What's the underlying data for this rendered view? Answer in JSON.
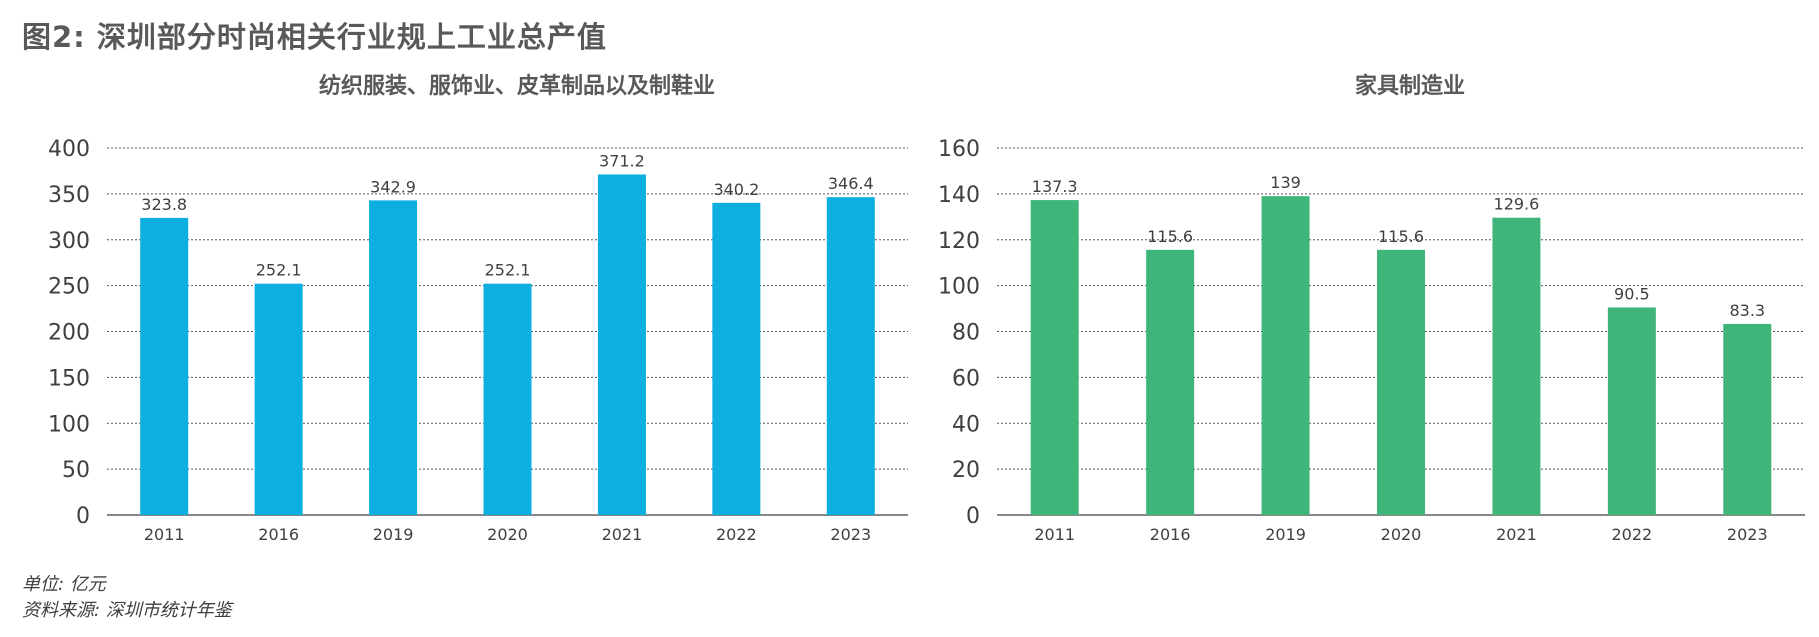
{
  "figure_title": "图2: 深圳部分时尚相关行业规上工业总产值",
  "footnotes": {
    "unit": "单位: 亿元",
    "source": "资料来源: 深圳市统计年鉴"
  },
  "chart_data": [
    {
      "type": "bar",
      "title": "纺织服装、服饰业、皮革制品以及制鞋业",
      "categories": [
        "2011",
        "2016",
        "2019",
        "2020",
        "2021",
        "2022",
        "2023"
      ],
      "values": [
        323.8,
        252.1,
        342.9,
        252.1,
        371.2,
        340.2,
        346.4
      ],
      "value_labels": [
        "323.8",
        "252.1",
        "342.9",
        "252.1",
        "371.2",
        "340.2",
        "346.4"
      ],
      "yticks": [
        "0",
        "50",
        "100",
        "150",
        "200",
        "250",
        "300",
        "350",
        "400"
      ],
      "ylim": [
        0,
        400
      ],
      "grid": true,
      "color": "#0daee0"
    },
    {
      "type": "bar",
      "title": "家具制造业",
      "categories": [
        "2011",
        "2016",
        "2019",
        "2020",
        "2021",
        "2022",
        "2023"
      ],
      "values": [
        137.3,
        115.6,
        139,
        115.6,
        129.6,
        90.5,
        83.3
      ],
      "value_labels": [
        "137.3",
        "115.6",
        "139",
        "115.6",
        "129.6",
        "90.5",
        "83.3"
      ],
      "yticks": [
        "0",
        "20",
        "40",
        "60",
        "80",
        "100",
        "120",
        "140",
        "160"
      ],
      "ylim": [
        0,
        160
      ],
      "grid": true,
      "color": "#40b57a"
    }
  ]
}
